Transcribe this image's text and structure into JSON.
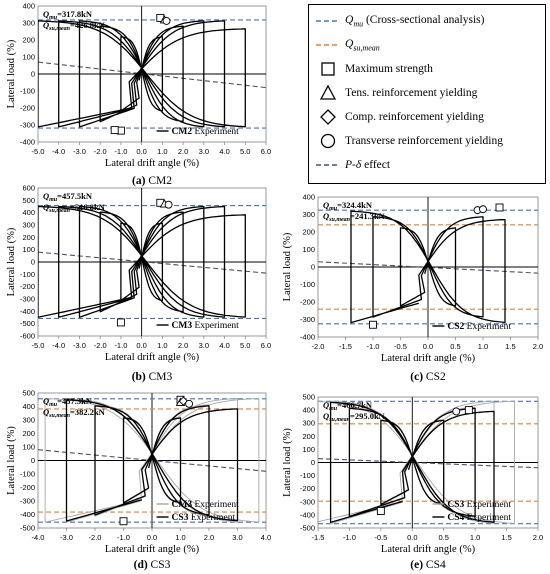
{
  "legend": {
    "items": [
      {
        "label": "Qmu (Cross-sectional analysis)",
        "symbol": "dash",
        "color": "#4472c4",
        "main": "Q",
        "sub": "mu",
        "rest": " (Cross-sectional analysis)"
      },
      {
        "label": "Qsu,mean",
        "symbol": "dash",
        "color": "#ed7d31",
        "main": "Q",
        "sub": "su,mean",
        "rest": ""
      },
      {
        "label": "Maximum strength",
        "symbol": "square",
        "color": "#000000"
      },
      {
        "label": "Tens. reinforcement yielding",
        "symbol": "triangle",
        "color": "#000000"
      },
      {
        "label": "Comp. reinforcement yielding",
        "symbol": "diamond",
        "color": "#000000"
      },
      {
        "label": "Transverse reinforcement yielding",
        "symbol": "circle",
        "color": "#000000"
      },
      {
        "label": "P-δ effect",
        "symbol": "dash",
        "color": "#44546a"
      }
    ]
  },
  "chart_data": [
    {
      "id": "cm2",
      "type": "line",
      "caption_letter": "(a)",
      "caption_name": "CM2",
      "xlabel": "Lateral drift angle (%)",
      "ylabel": "Lateral load (%)",
      "xlim": [
        -5.0,
        6.0
      ],
      "ylim": [
        -400,
        400
      ],
      "xticks": [
        "-5.0",
        "-4.0",
        "-3.0",
        "-2.0",
        "-1.0",
        "0.0",
        "1.0",
        "2.0",
        "3.0",
        "4.0",
        "5.0",
        "6.0"
      ],
      "yticks": [
        "-400",
        "-300",
        "-200",
        "-100",
        "0",
        "100",
        "200",
        "300",
        "400"
      ],
      "annot_qmu": "Qmu=317.8kN",
      "annot_qmu_main": "Q",
      "annot_qmu_sub": "mu",
      "annot_qmu_val": "=317.8kN",
      "annot_qsu": "Qsu,mean=426.8kN",
      "annot_qsu_main": "Q",
      "annot_qsu_sub": "su,mean",
      "annot_qsu_val": "=426.8kN",
      "qmu": 317.8,
      "qsu": null,
      "pdelta": [
        [
          -5.0,
          70
        ],
        [
          6.0,
          -80
        ]
      ],
      "peaks": [
        1.0,
        2.0,
        3.0,
        4.0,
        5.0
      ],
      "curve_scale": 1.0,
      "series": [
        {
          "name": "CM2 Experiment",
          "bold": "CM2",
          "rest": " Experiment",
          "color": "#000000"
        }
      ],
      "markers": {
        "square": [
          [
            0.9,
            330
          ],
          [
            -1.0,
            -333
          ],
          [
            -1.3,
            -330
          ]
        ],
        "triangle": [
          [
            1.1,
            318
          ]
        ],
        "circle": [
          [
            1.2,
            312
          ]
        ]
      }
    },
    {
      "id": "cm3",
      "type": "line",
      "caption_letter": "(b)",
      "caption_name": "CM3",
      "xlabel": "Lateral drift angle (%)",
      "ylabel": "Lateral load (%)",
      "xlim": [
        -5.0,
        6.0
      ],
      "ylim": [
        -600,
        600
      ],
      "xticks": [
        "-5.0",
        "-4.0",
        "-3.0",
        "-2.0",
        "-1.0",
        "0.0",
        "1.0",
        "2.0",
        "3.0",
        "4.0",
        "5.0",
        "6.0"
      ],
      "yticks": [
        "-600",
        "-500",
        "-400",
        "-300",
        "-200",
        "-100",
        "0",
        "100",
        "200",
        "300",
        "400",
        "500",
        "600"
      ],
      "annot_qmu": "Qmu=457.5kN",
      "annot_qmu_main": "Q",
      "annot_qmu_sub": "mu",
      "annot_qmu_val": "=457.5kN",
      "annot_qsu": "Qsu,mean=516.8kN",
      "annot_qsu_main": "Q",
      "annot_qsu_sub": "su,mean",
      "annot_qsu_val": "=516.8kN",
      "qmu": 457.5,
      "qsu": null,
      "pdelta": [
        [
          -5.0,
          80
        ],
        [
          6.0,
          -90
        ]
      ],
      "peaks": [
        1.0,
        2.0,
        3.0,
        4.0,
        5.0
      ],
      "curve_scale": 1.0,
      "series": [
        {
          "name": "CM3 Experiment",
          "bold": "CM3",
          "rest": " Experiment",
          "color": "#000000"
        }
      ],
      "markers": {
        "square": [
          [
            0.9,
            480
          ],
          [
            -1.0,
            -490
          ]
        ],
        "triangle": [
          [
            1.1,
            470
          ]
        ],
        "circle": [
          [
            1.3,
            465
          ]
        ]
      }
    },
    {
      "id": "cs2",
      "type": "line",
      "caption_letter": "(c)",
      "caption_name": "CS2",
      "xlabel": "Lateral drift angle (%)",
      "ylabel": "Lateral load (%)",
      "xlim": [
        -2.0,
        2.0
      ],
      "ylim": [
        -400,
        400
      ],
      "xticks": [
        "-2.0",
        "-1.5",
        "-1.0",
        "-0.5",
        "0.0",
        "0.5",
        "1.0",
        "1.5",
        "2.0"
      ],
      "yticks": [
        "-400",
        "-300",
        "-200",
        "-100",
        "0",
        "100",
        "200",
        "300",
        "400"
      ],
      "annot_qmu": "Qmu=324.4kN",
      "annot_qmu_main": "Q",
      "annot_qmu_sub": "mu",
      "annot_qmu_val": "=324.4kN",
      "annot_qsu": "Qsu,mean=241.3kN",
      "annot_qsu_main": "Q",
      "annot_qsu_sub": "su,mean",
      "annot_qsu_val": "=241.3kN",
      "qmu": 324.4,
      "qsu": 241.3,
      "pdelta": [
        [
          -2.0,
          30
        ],
        [
          2.0,
          -35
        ]
      ],
      "peaks": [
        0.5,
        1.0,
        1.4
      ],
      "curve_scale": 1.0,
      "series": [
        {
          "name": "CS2 Experiment",
          "bold": "CS2",
          "rest": " Experiment",
          "color": "#000000"
        }
      ],
      "markers": {
        "square": [
          [
            1.3,
            340
          ],
          [
            -1.0,
            -330
          ]
        ],
        "circle": [
          [
            0.9,
            325
          ],
          [
            1.0,
            330
          ]
        ]
      }
    },
    {
      "id": "cs3",
      "type": "line",
      "caption_letter": "(d)",
      "caption_name": "CS3",
      "xlabel": "Lateral drift angle (%)",
      "ylabel": "Lateral load (%)",
      "xlim": [
        -4.0,
        4.0
      ],
      "ylim": [
        -500,
        500
      ],
      "xticks": [
        "-4.0",
        "-3.0",
        "-2.0",
        "-1.0",
        "0.0",
        "1.0",
        "2.0",
        "3.0",
        "4.0"
      ],
      "yticks": [
        "-500",
        "-400",
        "-300",
        "-200",
        "-100",
        "0",
        "100",
        "200",
        "300",
        "400",
        "500"
      ],
      "annot_qmu": "Qmu=457.3kN",
      "annot_qmu_main": "Q",
      "annot_qmu_sub": "mu",
      "annot_qmu_val": "=457.3kN",
      "annot_qsu": "Qsu,mean=382.2kN",
      "annot_qsu_main": "Q",
      "annot_qsu_sub": "su,mean",
      "annot_qsu_val": "=382.2kN",
      "qmu": 457.3,
      "qsu": 382.2,
      "pdelta": [
        [
          -4.0,
          80
        ],
        [
          4.0,
          -80
        ]
      ],
      "peaks": [
        1.0,
        2.0,
        3.0
      ],
      "curve_scale": 1.0,
      "series": [
        {
          "name": "CM3 Experiment",
          "bold": "CM3",
          "rest": " Experiment",
          "color": "#a6a6a6"
        },
        {
          "name": "CS3 Experiment",
          "bold": "CS3",
          "rest": " Experiment",
          "color": "#000000"
        }
      ],
      "markers": {
        "square": [
          [
            1.0,
            450
          ],
          [
            -1.0,
            -450
          ]
        ],
        "triangle": [
          [
            1.0,
            430
          ]
        ],
        "diamond": [
          [
            1.1,
            440
          ]
        ],
        "circle": [
          [
            1.3,
            420
          ]
        ]
      }
    },
    {
      "id": "cs4",
      "type": "line",
      "caption_letter": "(e)",
      "caption_name": "CS4",
      "xlabel": "Lateral drift angle (%)",
      "ylabel": "Lateral load (%)",
      "xlim": [
        -1.5,
        2.0
      ],
      "ylim": [
        -500,
        500
      ],
      "xticks": [
        "-1.5",
        "-1.0",
        "-0.5",
        "0.0",
        "0.5",
        "1.0",
        "1.5",
        "2.0"
      ],
      "yticks": [
        "-500",
        "-400",
        "-300",
        "-200",
        "-100",
        "0",
        "100",
        "200",
        "300",
        "400",
        "500"
      ],
      "annot_qmu": "Qmu=466.7kN",
      "annot_qmu_main": "Q",
      "annot_qmu_sub": "mu",
      "annot_qmu_val": "=466.7kN",
      "annot_qsu": "Qsu,mean=295.0kN",
      "annot_qsu_main": "Q",
      "annot_qsu_sub": "su,mean",
      "annot_qsu_val": "=295.0kN",
      "qmu": 466.7,
      "qsu": 295.0,
      "pdelta": [
        [
          -1.5,
          30
        ],
        [
          2.0,
          -40
        ]
      ],
      "peaks": [
        0.5,
        1.0,
        1.3
      ],
      "curve_scale": 1.0,
      "series": [
        {
          "name": "CS3 Experiment",
          "bold": "CS3",
          "rest": " Experiment",
          "color": "#a6a6a6"
        },
        {
          "name": "CS4 Experiment",
          "bold": "CS4",
          "rest": " Experiment",
          "color": "#000000"
        }
      ],
      "markers": {
        "square": [
          [
            0.9,
            400
          ],
          [
            -0.5,
            -370
          ]
        ],
        "circle": [
          [
            0.7,
            390
          ]
        ]
      }
    }
  ]
}
